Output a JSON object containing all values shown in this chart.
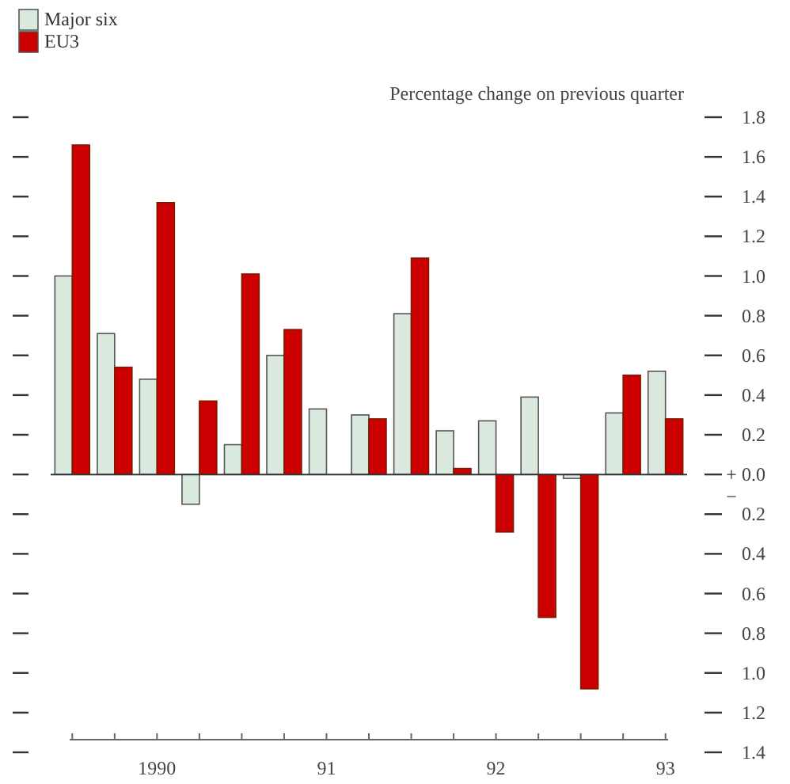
{
  "chart_data": {
    "type": "bar",
    "ylabel": "Percentage change on previous quarter",
    "categories": [
      null,
      null,
      "1990",
      null,
      null,
      null,
      "91",
      null,
      null,
      null,
      "92",
      null,
      null,
      null,
      "93"
    ],
    "series": [
      {
        "name": "Major six",
        "color": "#d9e9de",
        "values": [
          1.0,
          0.71,
          0.48,
          -0.15,
          0.15,
          0.6,
          0.33,
          0.3,
          0.81,
          0.22,
          0.27,
          0.39,
          -0.02,
          0.31,
          0.52
        ]
      },
      {
        "name": "EU3",
        "color": "#cc0000",
        "values": [
          1.66,
          0.54,
          1.37,
          0.37,
          1.01,
          0.73,
          0,
          0.28,
          1.09,
          0.03,
          -0.29,
          -0.72,
          -1.08,
          0.5,
          0.28
        ]
      }
    ],
    "ylim": [
      -1.4,
      1.8
    ],
    "yticks": [
      1.8,
      1.6,
      1.4,
      1.2,
      {
        "value": 1.0,
        "label": "1.0"
      },
      0.8,
      0.6,
      0.4,
      0.2,
      {
        "value": 0.0,
        "label": "0.0"
      },
      {
        "value": -0.2,
        "label": "0.2"
      },
      {
        "value": -0.4,
        "label": "0.4"
      },
      {
        "value": -0.6,
        "label": "0.6"
      },
      {
        "value": -0.8,
        "label": "0.8"
      },
      {
        "value": -1.0,
        "label": "1.0"
      },
      {
        "value": -1.2,
        "label": "1.2"
      },
      {
        "value": -1.4,
        "label": "1.4"
      }
    ],
    "annotations": [
      "+",
      "−"
    ],
    "legend": "top left"
  }
}
